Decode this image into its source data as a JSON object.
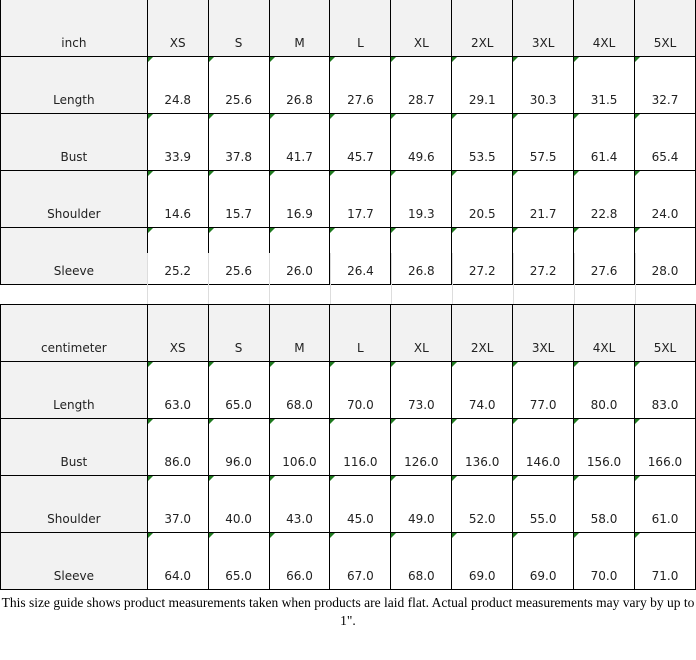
{
  "tables": [
    {
      "unit": "inch",
      "sizes": [
        "XS",
        "S",
        "M",
        "L",
        "XL",
        "2XL",
        "3XL",
        "4XL",
        "5XL"
      ],
      "rows": [
        {
          "label": "Length",
          "values": [
            "24.8",
            "25.6",
            "26.8",
            "27.6",
            "28.7",
            "29.1",
            "30.3",
            "31.5",
            "32.7"
          ]
        },
        {
          "label": "Bust",
          "values": [
            "33.9",
            "37.8",
            "41.7",
            "45.7",
            "49.6",
            "53.5",
            "57.5",
            "61.4",
            "65.4"
          ]
        },
        {
          "label": "Shoulder",
          "values": [
            "14.6",
            "15.7",
            "16.9",
            "17.7",
            "19.3",
            "20.5",
            "21.7",
            "22.8",
            "24.0"
          ]
        },
        {
          "label": "Sleeve",
          "values": [
            "25.2",
            "25.6",
            "26.0",
            "26.4",
            "26.8",
            "27.2",
            "27.2",
            "27.6",
            "28.0"
          ]
        }
      ]
    },
    {
      "unit": "centimeter",
      "sizes": [
        "XS",
        "S",
        "M",
        "L",
        "XL",
        "2XL",
        "3XL",
        "4XL",
        "5XL"
      ],
      "rows": [
        {
          "label": "Length",
          "values": [
            "63.0",
            "65.0",
            "68.0",
            "70.0",
            "73.0",
            "74.0",
            "77.0",
            "80.0",
            "83.0"
          ]
        },
        {
          "label": "Bust",
          "values": [
            "86.0",
            "96.0",
            "106.0",
            "116.0",
            "126.0",
            "136.0",
            "146.0",
            "156.0",
            "166.0"
          ]
        },
        {
          "label": "Shoulder",
          "values": [
            "37.0",
            "40.0",
            "43.0",
            "45.0",
            "49.0",
            "52.0",
            "55.0",
            "58.0",
            "61.0"
          ]
        },
        {
          "label": "Sleeve",
          "values": [
            "64.0",
            "65.0",
            "66.0",
            "67.0",
            "68.0",
            "69.0",
            "69.0",
            "70.0",
            "71.0"
          ]
        }
      ]
    }
  ],
  "note": "This size guide shows product measurements taken when products are laid flat. Actual product measurements may vary by up to 1\"."
}
